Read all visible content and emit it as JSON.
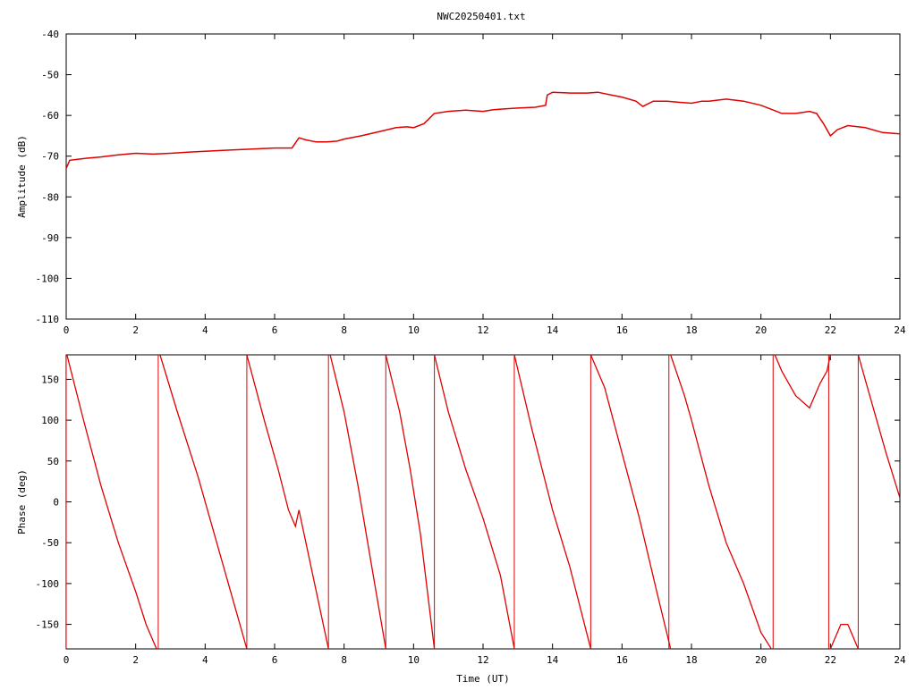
{
  "title": "NWC20250401.txt",
  "colors": {
    "series": "#e00000",
    "axis": "#000000",
    "background": "#ffffff"
  },
  "chart_data": [
    {
      "type": "line",
      "title": "NWC20250401.txt",
      "xlabel": "",
      "ylabel": "Amplitude (dB)",
      "xlim": [
        0,
        24
      ],
      "ylim": [
        -110,
        -40
      ],
      "xticks": [
        "0",
        "2",
        "4",
        "6",
        "8",
        "10",
        "12",
        "14",
        "16",
        "18",
        "20",
        "22",
        "24"
      ],
      "yticks": [
        "-40",
        "-50",
        "-60",
        "-70",
        "-80",
        "-90",
        "-100",
        "-110"
      ],
      "grid": false,
      "x": [
        0,
        0.1,
        0.3,
        0.6,
        1,
        1.5,
        2,
        2.5,
        3,
        3.5,
        4,
        4.5,
        5,
        5.5,
        6,
        6.5,
        6.7,
        6.9,
        7.2,
        7.5,
        7.8,
        8,
        8.5,
        9,
        9.5,
        9.8,
        10,
        10.3,
        10.6,
        11,
        11.5,
        12,
        12.3,
        12.6,
        13,
        13.5,
        13.8,
        13.85,
        14,
        14.5,
        15,
        15.3,
        15.7,
        16,
        16.4,
        16.6,
        16.9,
        17.3,
        17.7,
        18,
        18.3,
        18.5,
        19,
        19.5,
        20,
        20.3,
        20.6,
        21,
        21.4,
        21.6,
        21.8,
        22,
        22.2,
        22.5,
        23,
        23.5,
        24
      ],
      "y": [
        -73,
        -71,
        -70.8,
        -70.5,
        -70.2,
        -69.7,
        -69.3,
        -69.5,
        -69.3,
        -69,
        -68.8,
        -68.6,
        -68.4,
        -68.2,
        -68,
        -68,
        -65.5,
        -66,
        -66.5,
        -66.5,
        -66.3,
        -65.8,
        -65,
        -64,
        -63,
        -62.8,
        -63,
        -62,
        -59.5,
        -59,
        -58.7,
        -59,
        -58.6,
        -58.4,
        -58.2,
        -58,
        -57.5,
        -55,
        -54.3,
        -54.5,
        -54.5,
        -54.3,
        -55,
        -55.5,
        -56.5,
        -57.8,
        -56.5,
        -56.5,
        -56.8,
        -57,
        -56.5,
        -56.5,
        -56,
        -56.5,
        -57.5,
        -58.5,
        -59.5,
        -59.5,
        -59,
        -59.5,
        -62,
        -65,
        -63.5,
        -62.5,
        -63,
        -64.2,
        -64.5
      ],
      "series": [
        {
          "values": "y"
        }
      ]
    },
    {
      "type": "line",
      "xlabel": "Time (UT)",
      "ylabel": "Phase (deg)",
      "xlim": [
        0,
        24
      ],
      "ylim": [
        -180,
        180
      ],
      "xticks": [
        "0",
        "2",
        "4",
        "6",
        "8",
        "10",
        "12",
        "14",
        "16",
        "18",
        "20",
        "22",
        "24"
      ],
      "yticks": [
        "150",
        "100",
        "50",
        "0",
        "-50",
        "-100",
        "-150"
      ],
      "grid": false,
      "segments": [
        {
          "x": [
            0.02,
            0.5,
            1.0,
            1.5,
            2.0,
            2.3,
            2.6
          ],
          "y": [
            180,
            100,
            20,
            -50,
            -110,
            -150,
            -180
          ]
        },
        {
          "x": [
            2.7,
            3.2,
            3.8,
            4.4,
            5.0,
            5.2
          ],
          "y": [
            180,
            110,
            30,
            -60,
            -150,
            -180
          ]
        },
        {
          "x": [
            5.2,
            5.7,
            6.1,
            6.4,
            6.6,
            6.7,
            6.9,
            7.2,
            7.55
          ],
          "y": [
            180,
            100,
            40,
            -10,
            -30,
            -10,
            -50,
            -110,
            -180
          ]
        },
        {
          "x": [
            7.6,
            8.0,
            8.4,
            8.8,
            9.2
          ],
          "y": [
            180,
            110,
            20,
            -80,
            -180
          ]
        },
        {
          "x": [
            9.2,
            9.6,
            9.9,
            10.2,
            10.6
          ],
          "y": [
            180,
            110,
            40,
            -40,
            -180
          ]
        },
        {
          "x": [
            10.6,
            11.0,
            11.5,
            12.0,
            12.5,
            12.9
          ],
          "y": [
            180,
            110,
            40,
            -20,
            -90,
            -180
          ]
        },
        {
          "x": [
            12.9,
            13.4,
            14.0,
            14.5,
            15.1
          ],
          "y": [
            180,
            90,
            -10,
            -80,
            -180
          ]
        },
        {
          "x": [
            15.1,
            15.5,
            16.0,
            16.5,
            17.0,
            17.4
          ],
          "y": [
            180,
            140,
            60,
            -20,
            -110,
            -180
          ]
        },
        {
          "x": [
            17.4,
            17.8,
            18.0,
            18.5,
            19.0,
            19.5,
            20.0,
            20.3
          ],
          "y": [
            180,
            130,
            100,
            20,
            -50,
            -100,
            -160,
            -180
          ]
        },
        {
          "x": [
            20.4,
            20.6,
            21.0,
            21.4,
            21.7,
            21.9,
            22.0
          ],
          "y": [
            180,
            160,
            130,
            115,
            145,
            160,
            180
          ]
        },
        {
          "x": [
            22.0,
            22.3,
            22.5,
            22.8
          ],
          "y": [
            -180,
            -150,
            -150,
            -180
          ]
        },
        {
          "x": [
            22.8,
            23.2,
            23.6,
            24.0
          ],
          "y": [
            180,
            120,
            60,
            5
          ]
        }
      ],
      "wraps": [
        0.0,
        2.65,
        5.2,
        7.55,
        9.2,
        10.6,
        12.9,
        15.1,
        17.35,
        20.35,
        21.95,
        22.8
      ]
    }
  ]
}
